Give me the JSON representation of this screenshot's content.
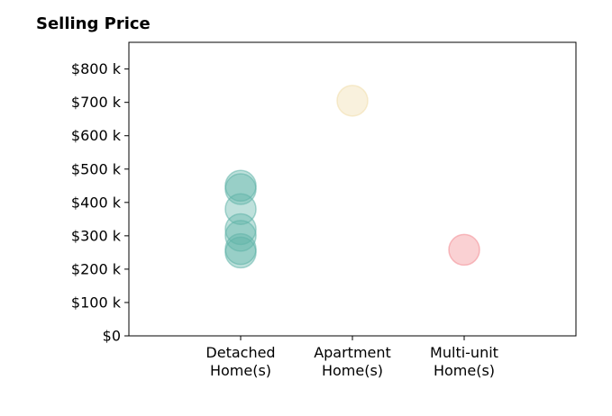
{
  "chart_data": {
    "type": "scatter",
    "title": "Selling Price",
    "xlabel": "",
    "ylabel": "",
    "categories": [
      "Detached\nHome(s)",
      "Apartment\nHome(s)",
      "Multi-unit\nHome(s)"
    ],
    "x_range": [
      -1,
      3
    ],
    "ylim": [
      0,
      880000
    ],
    "y_ticks": [
      0,
      100000,
      200000,
      300000,
      400000,
      500000,
      600000,
      700000,
      800000
    ],
    "y_tick_labels": [
      "$0",
      "$100 k",
      "$200 k",
      "$300 k",
      "$400 k",
      "$500 k",
      "$600 k",
      "$700 k",
      "$800 k"
    ],
    "grid": false,
    "legend": "none",
    "series": [
      {
        "color": "#5fb3a7",
        "points": [
          {
            "x": 0,
            "y": 450000
          },
          {
            "x": 0,
            "y": 440000
          },
          {
            "x": 0,
            "y": 380000
          },
          {
            "x": 0,
            "y": 320000
          },
          {
            "x": 0,
            "y": 300000
          },
          {
            "x": 0,
            "y": 260000
          },
          {
            "x": 0,
            "y": 250000
          }
        ]
      },
      {
        "color": "#f0dcaa",
        "points": [
          {
            "x": 1,
            "y": 705000
          }
        ]
      },
      {
        "color": "#f28b92",
        "points": [
          {
            "x": 2,
            "y": 258000
          }
        ]
      }
    ]
  }
}
